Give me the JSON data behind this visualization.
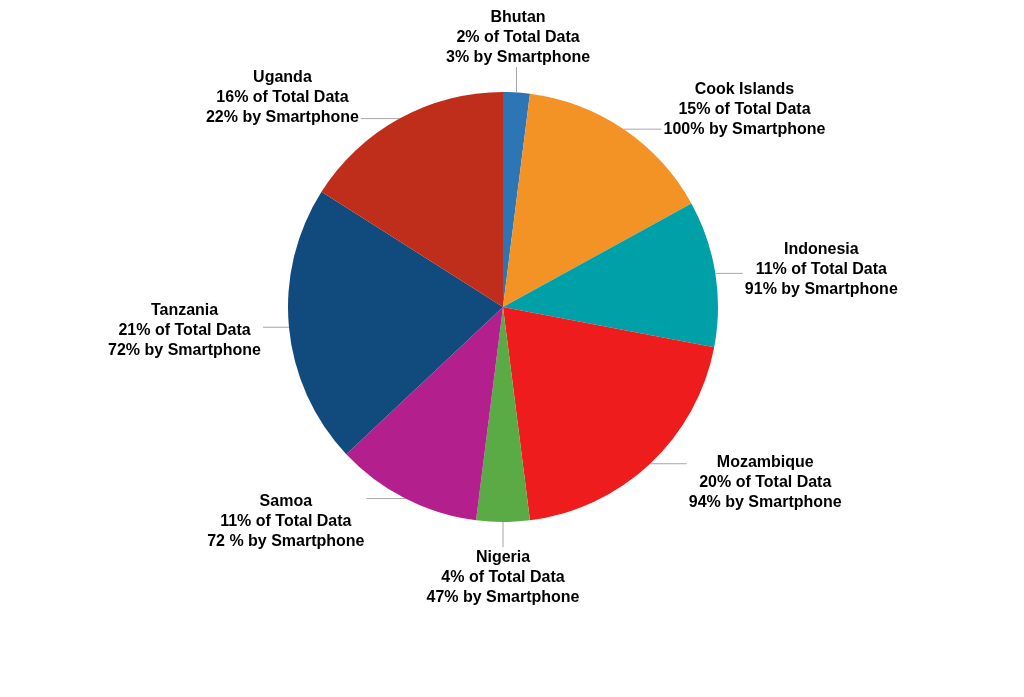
{
  "chart_data": {
    "type": "pie",
    "categories": [
      "Bhutan",
      "Cook Islands",
      "Indonesia",
      "Mozambique",
      "Nigeria",
      "Samoa",
      "Tanzania",
      "Uganda"
    ],
    "values": [
      2,
      15,
      11,
      20,
      4,
      11,
      21,
      16
    ],
    "colors": [
      "#2e75b6",
      "#f39325",
      "#00a0a8",
      "#ee1c1c",
      "#5aaa46",
      "#b41f8e",
      "#114a7c",
      "#bf2d1b"
    ],
    "value_labels": [
      "2% of Total Data\n3% by Smartphone",
      "15% of Total Data\n100% by Smartphone",
      "11% of Total Data\n91% by Smartphone",
      "20% of Total Data\n94% by Smartphone",
      "4% of Total Data\n47% by Smartphone",
      "11% of Total Data\n72 % by Smartphone",
      "21% of Total Data\n72% by Smartphone",
      "16% of Total Data\n22% by Smartphone"
    ]
  }
}
